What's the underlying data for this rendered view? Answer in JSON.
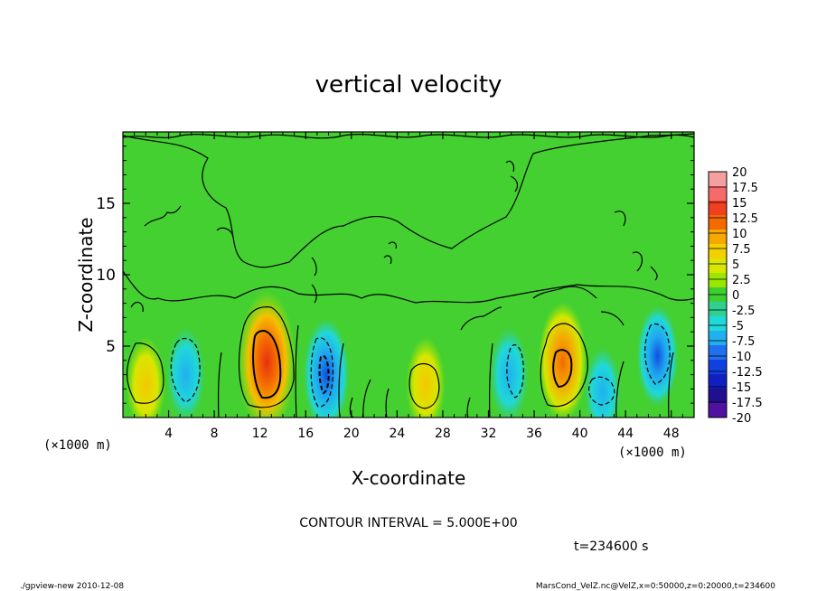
{
  "chart_data": {
    "type": "heatmap",
    "title": "vertical velocity",
    "xlabel": "X-coordinate",
    "ylabel": "Z-coordinate",
    "x_unit_left": "(×1000 m)",
    "x_unit_right": "(×1000 m)",
    "xlim": [
      0,
      50
    ],
    "ylim": [
      0,
      20
    ],
    "x_ticks": [
      4,
      8,
      12,
      16,
      20,
      24,
      28,
      32,
      36,
      40,
      44,
      48
    ],
    "y_ticks": [
      5,
      10,
      15
    ],
    "contour_interval_text": "CONTOUR INTERVAL = 5.000E+00",
    "time_text": "t=234600 s",
    "colorbar": {
      "levels": [
        "20",
        "17.5",
        "15",
        "12.5",
        "10",
        "7.5",
        "5",
        "2.5",
        "0",
        "-2.5",
        "-5",
        "-7.5",
        "-10",
        "-12.5",
        "-15",
        "-17.5",
        "-20"
      ],
      "colors": [
        "#f4a0a0",
        "#f36b6b",
        "#f04020",
        "#f26a00",
        "#f5a800",
        "#f3d000",
        "#d8e600",
        "#9be600",
        "#3ccf30",
        "#30d090",
        "#20d8d8",
        "#20b0f0",
        "#2070f0",
        "#1040e0",
        "#1020c0",
        "#201090",
        "#5010a0"
      ]
    },
    "features": [
      {
        "type": "updraft",
        "x": 12.6,
        "z": 3.9,
        "peak": 14
      },
      {
        "type": "updraft",
        "x": 38.5,
        "z": 3.9,
        "peak": 10
      },
      {
        "type": "updraft",
        "x": 2.0,
        "z": 2.3,
        "peak": 6
      },
      {
        "type": "updraft",
        "x": 26.5,
        "z": 2.3,
        "peak": 6
      },
      {
        "type": "downdraft",
        "x": 17.8,
        "z": 3.0,
        "peak": -9
      },
      {
        "type": "downdraft",
        "x": 5.5,
        "z": 3.0,
        "peak": -6
      },
      {
        "type": "downdraft",
        "x": 33.8,
        "z": 3.0,
        "peak": -6
      },
      {
        "type": "downdraft",
        "x": 46.8,
        "z": 4.3,
        "peak": -7
      },
      {
        "type": "downdraft",
        "x": 42.0,
        "z": 1.8,
        "peak": -5
      }
    ]
  },
  "footer": {
    "left": "./gpview-new  2010-12-08",
    "right": "MarsCond_VelZ.nc@VelZ,x=0:50000,z=0:20000,t=234600"
  }
}
